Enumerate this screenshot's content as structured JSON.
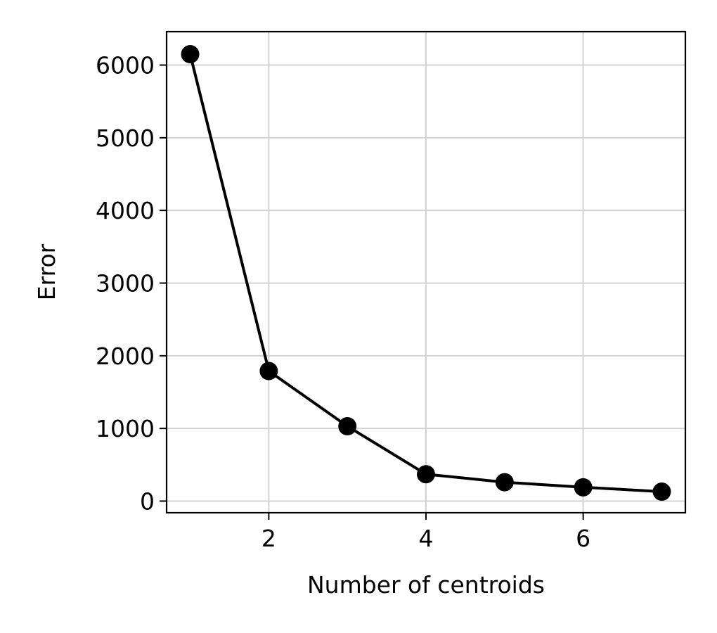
{
  "chart_data": {
    "type": "line",
    "title": "",
    "xlabel": "Number of centroids",
    "ylabel": "Error",
    "x": [
      1,
      2,
      3,
      4,
      5,
      6,
      7
    ],
    "series": [
      {
        "values": [
          6150,
          1790,
          1030,
          370,
          260,
          190,
          130
        ]
      }
    ],
    "xlim": [
      0.7,
      7.3
    ],
    "ylim": [
      -160,
      6460
    ],
    "xticks": [
      2,
      4,
      6
    ],
    "yticks": [
      0,
      1000,
      2000,
      3000,
      4000,
      5000,
      6000
    ],
    "grid": true,
    "legend": "none",
    "colors": {
      "line": "#000000",
      "marker": "#000000",
      "grid": "#d3d3d3",
      "axes": "#000000"
    }
  }
}
